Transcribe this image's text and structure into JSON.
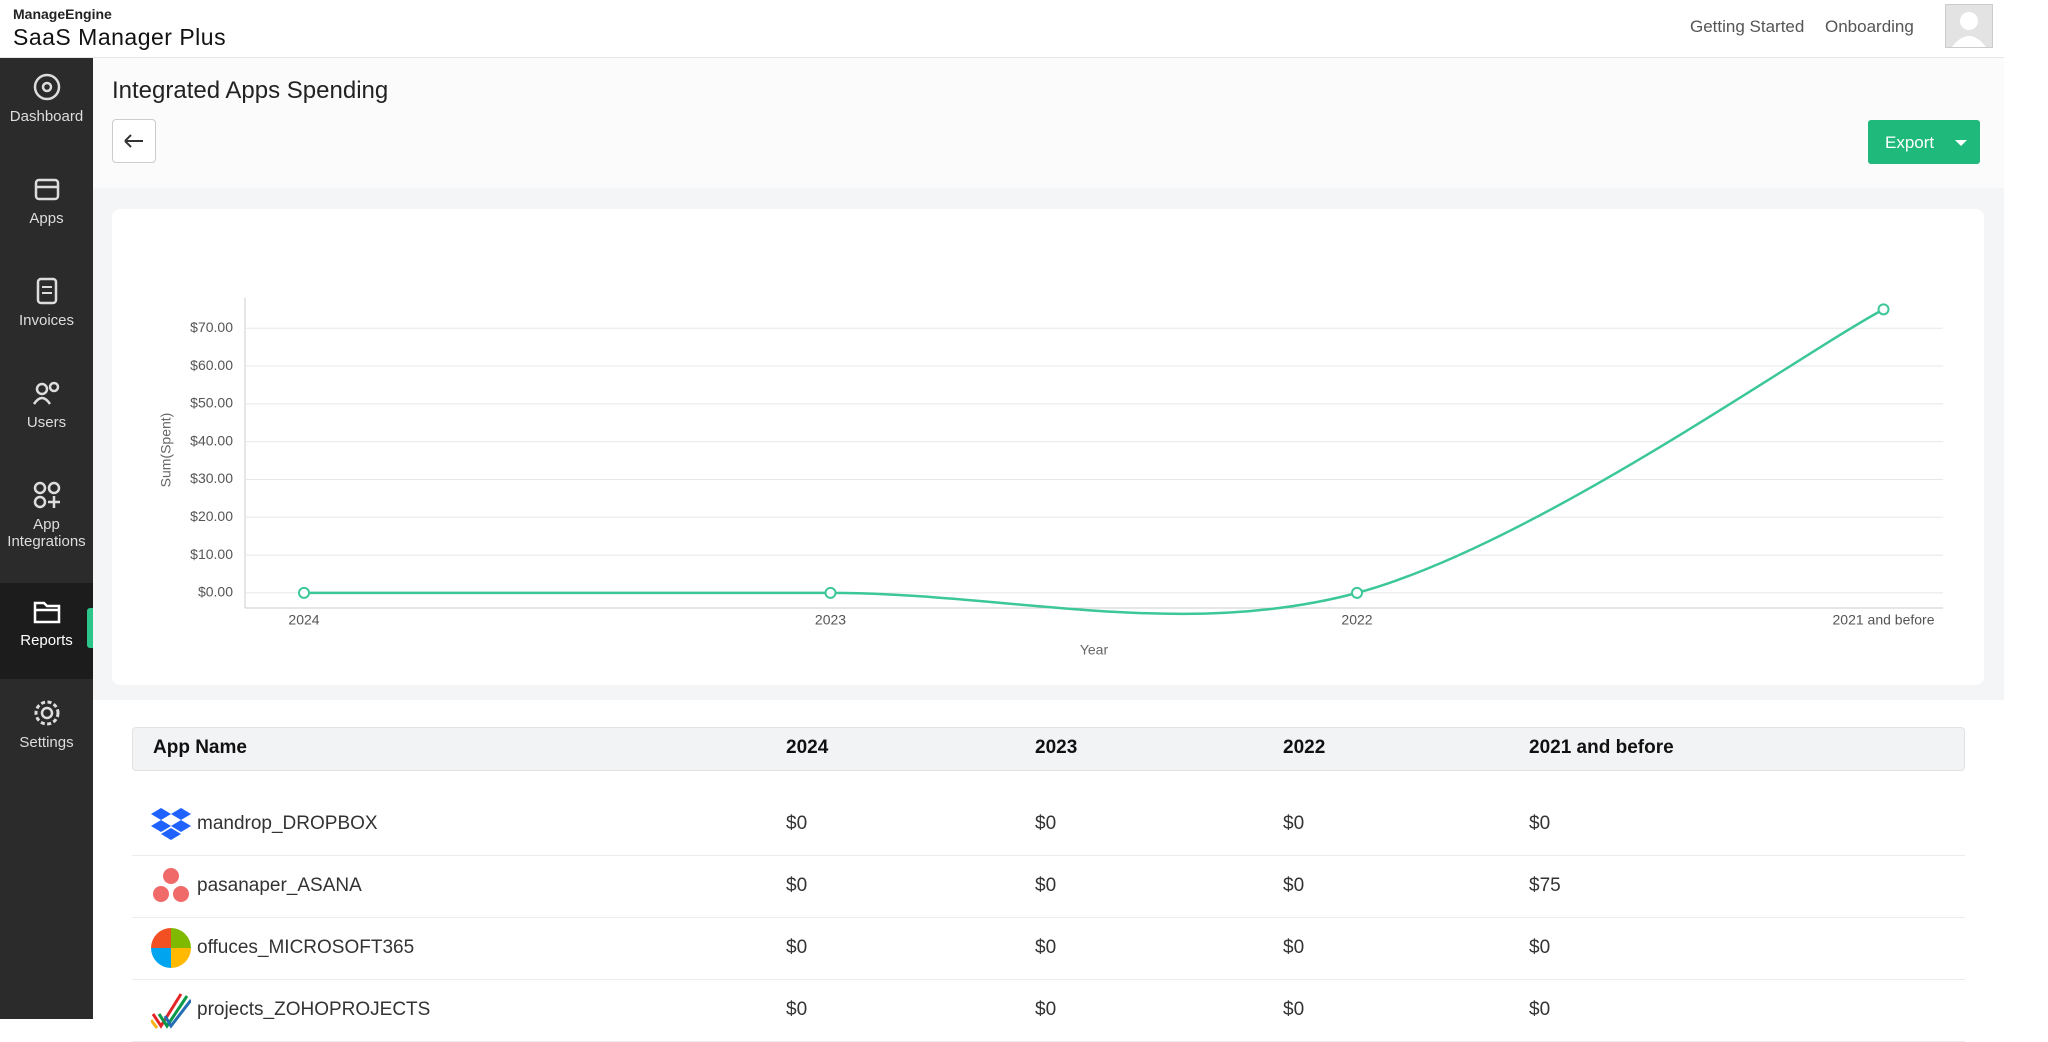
{
  "header": {
    "brand": "ManageEngine",
    "product": "SaaS Manager Plus",
    "links": [
      "Getting Started",
      "Onboarding"
    ]
  },
  "sidebar": {
    "items": [
      "Dashboard",
      "Apps",
      "Invoices",
      "Users",
      "App Integrations",
      "Reports",
      "Settings"
    ],
    "active": "Reports"
  },
  "page": {
    "title": "Integrated Apps Spending",
    "export": "Export"
  },
  "chart_data": {
    "type": "line",
    "categories": [
      "2024",
      "2023",
      "2022",
      "2021 and before"
    ],
    "series": [
      {
        "name": "Sum(Spent)",
        "color": "#3cc796",
        "values": [
          0,
          0,
          0,
          75
        ]
      }
    ],
    "y_label": "Sum(Spent)",
    "x_label": "Year",
    "ylim": [
      -4,
      78
    ],
    "yticks": [
      {
        "value": 0,
        "label": "$0.00"
      },
      {
        "value": 10,
        "label": "$10.00"
      },
      {
        "value": 20,
        "label": "$20.00"
      },
      {
        "value": 30,
        "label": "$30.00"
      },
      {
        "value": 40,
        "label": "$40.00"
      },
      {
        "value": 50,
        "label": "$50.00"
      },
      {
        "value": 60,
        "label": "$60.00"
      },
      {
        "value": 70,
        "label": "$70.00"
      }
    ],
    "grid": true,
    "smooth": true
  },
  "table": {
    "columns": [
      "App Name",
      "2024",
      "2023",
      "2022",
      "2021 and before"
    ],
    "rows": [
      [
        "mandrop_DROPBOX",
        "$0",
        "$0",
        "$0",
        "$0"
      ],
      [
        "pasanaper_ASANA",
        "$0",
        "$0",
        "$0",
        "$75"
      ],
      [
        "offuces_MICROSOFT365",
        "$0",
        "$0",
        "$0",
        "$0"
      ],
      [
        "projects_ZOHOPROJECTS",
        "$0",
        "$0",
        "$0",
        "$0"
      ]
    ]
  }
}
